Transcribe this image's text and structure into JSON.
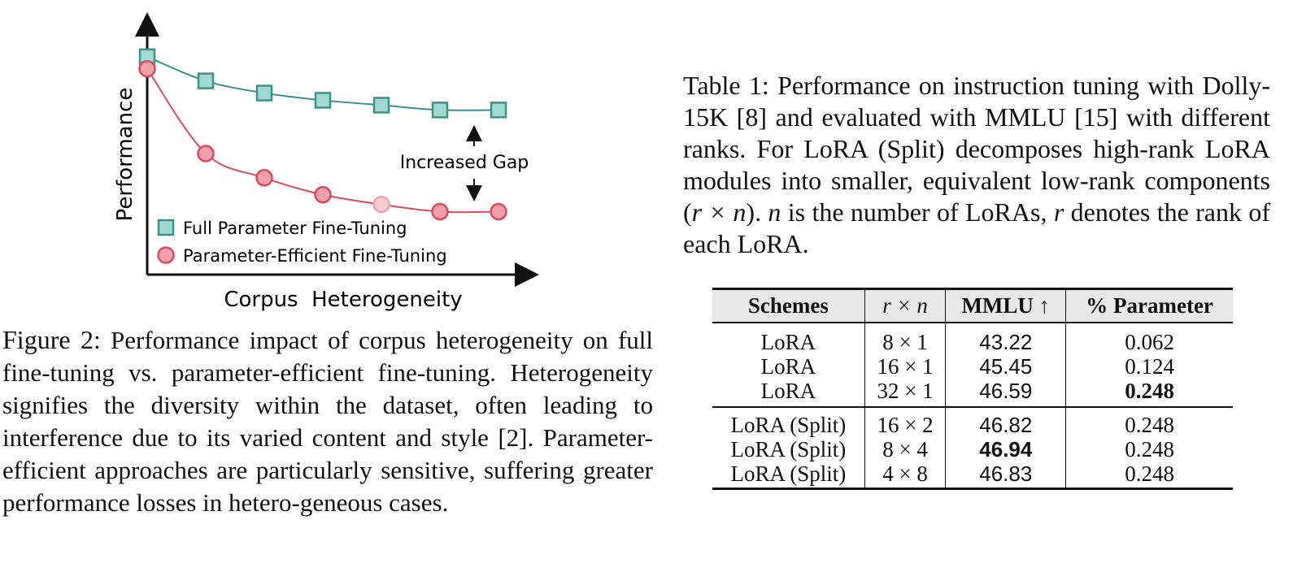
{
  "chart_data": {
    "type": "line",
    "xlabel": "Corpus  Heterogeneity",
    "ylabel": "Performance",
    "annotation": "Increased Gap",
    "colors": {
      "full": "#3b9486",
      "full_fill": "#9fd9d0",
      "peft": "#d94c5c",
      "peft_fill": "#f0a0aa",
      "peft_light": "#f7cdd3"
    },
    "series": [
      {
        "name": "Full Parameter Fine-Tuning",
        "marker": "square",
        "values": [
          0.9,
          0.8,
          0.75,
          0.72,
          0.7,
          0.68,
          0.68
        ]
      },
      {
        "name": "Parameter-Efficient Fine-Tuning",
        "marker": "circle",
        "values": [
          0.85,
          0.5,
          0.4,
          0.33,
          0.29,
          0.26,
          0.26
        ]
      }
    ]
  },
  "figure": {
    "label": "Figure 2:",
    "caption": "Performance impact of corpus heterogeneity on full fine-tuning vs.  parameter-efficient fine-tuning. Heterogeneity signifies the diversity within the dataset, often leading to interference due to its varied content and style [2]. Parameter-efficient approaches are particularly sensitive, suffering greater performance losses in hetero-geneous cases."
  },
  "table_caption": {
    "label": "Table 1:",
    "part1": "Performance on instruction tuning with Dolly-15K [8] and evaluated with MMLU [15] with different ranks. For LoRA (Split) decomposes high-rank LoRA modules into smaller, equivalent low-rank components (",
    "math1": "r × n",
    "part2": "). ",
    "math2": "n",
    "part3": " is the number of LoRAs, ",
    "math3": "r",
    "part4": " denotes the rank of each LoRA."
  },
  "table": {
    "headers": [
      "Schemes",
      "r × n",
      "MMLU ↑",
      "% Parameter"
    ],
    "rows": [
      [
        "LoRA",
        "8 × 1",
        "43.22",
        "0.062"
      ],
      [
        "LoRA",
        "16 × 1",
        "45.45",
        "0.124"
      ],
      [
        "LoRA",
        "32 × 1",
        "46.59",
        "0.248"
      ],
      [
        "LoRA (Split)",
        "16 × 2",
        "46.82",
        "0.248"
      ],
      [
        "LoRA (Split)",
        "8 × 4",
        "46.94",
        "0.248"
      ],
      [
        "LoRA (Split)",
        "4 × 8",
        "46.83",
        "0.248"
      ]
    ]
  }
}
